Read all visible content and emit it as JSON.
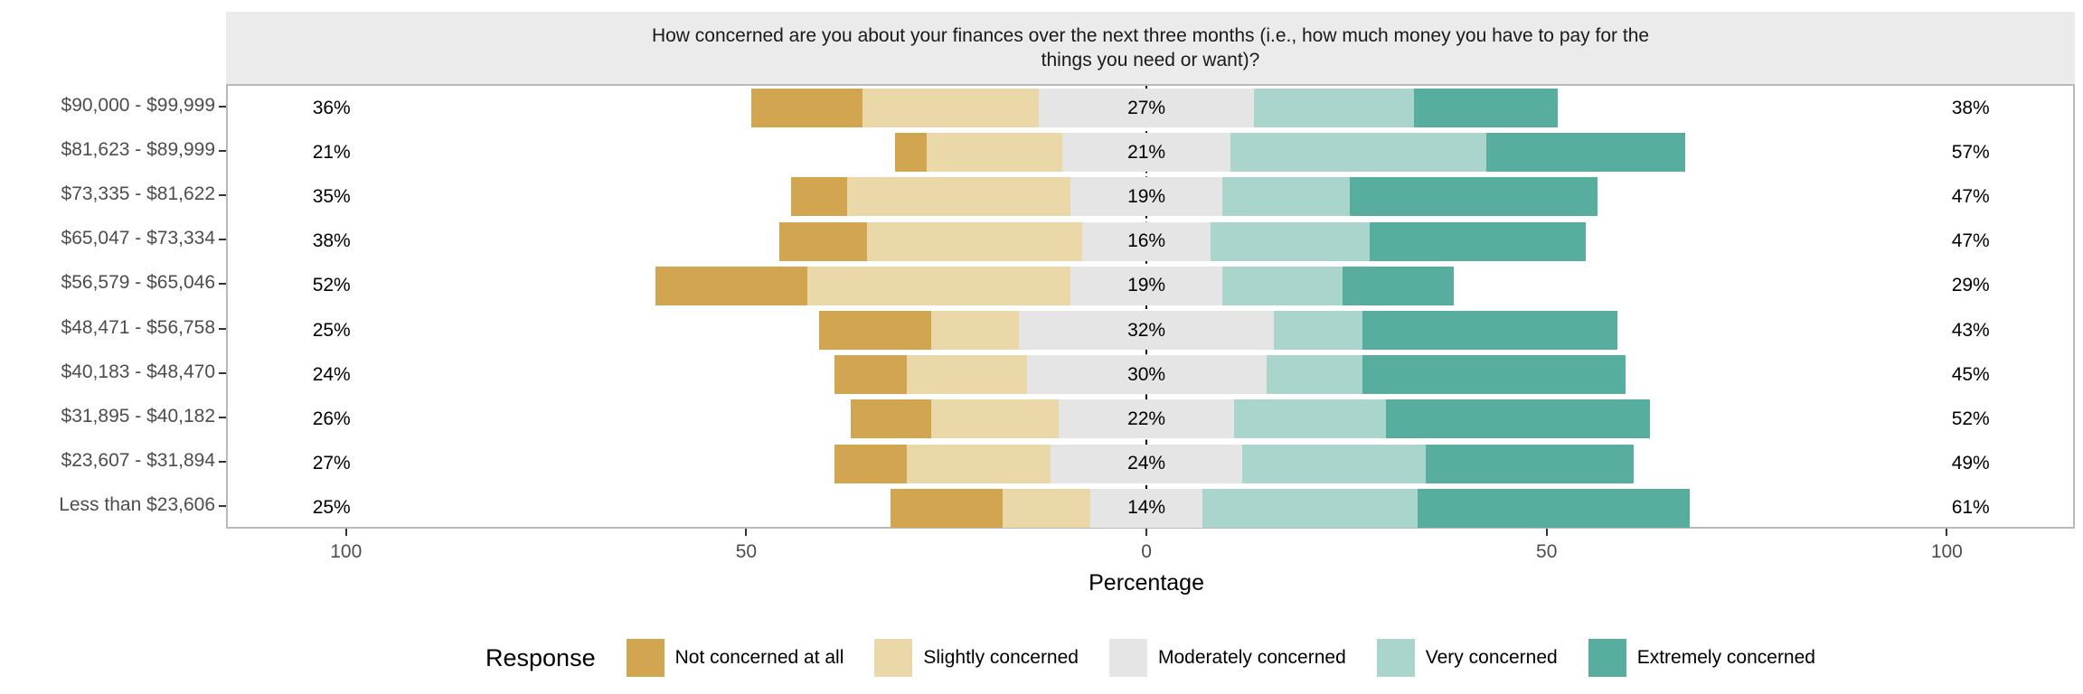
{
  "title": {
    "line1": "How concerned are you about your finances over the next three months (i.e., how much money you have to pay for the",
    "line2": "things you need or want)?"
  },
  "chart_data": {
    "type": "bar",
    "subtype": "diverging_stacked_likert",
    "orientation": "horizontal",
    "xlabel": "Percentage",
    "legend_title": "Response",
    "categories": [
      "$90,000 - $99,999",
      "$81,623 - $89,999",
      "$73,335 - $81,622",
      "$65,047 - $73,334",
      "$56,579 - $65,046",
      "$48,471 - $56,758",
      "$40,183 - $48,470",
      "$31,895 - $40,182",
      "$23,607 - $31,894",
      "Less than $23,606"
    ],
    "series": [
      {
        "name": "Not concerned at all",
        "color": "#d2a551",
        "values": [
          14,
          4,
          7,
          11,
          19,
          14,
          9,
          10,
          9,
          14
        ]
      },
      {
        "name": "Slightly concerned",
        "color": "#ead8a8",
        "values": [
          22,
          17,
          28,
          27,
          33,
          11,
          15,
          16,
          18,
          11
        ]
      },
      {
        "name": "Moderately concerned",
        "color": "#e5e5e5",
        "values": [
          27,
          21,
          19,
          16,
          19,
          32,
          30,
          22,
          24,
          14
        ]
      },
      {
        "name": "Very concerned",
        "color": "#a9d5cc",
        "values": [
          20,
          32,
          16,
          20,
          15,
          11,
          12,
          19,
          23,
          27
        ]
      },
      {
        "name": "Extremely concerned",
        "color": "#57ae9f",
        "values": [
          18,
          25,
          31,
          27,
          14,
          32,
          33,
          33,
          26,
          34
        ]
      }
    ],
    "left_total_labels": [
      "36%",
      "21%",
      "35%",
      "38%",
      "52%",
      "25%",
      "24%",
      "26%",
      "27%",
      "25%"
    ],
    "middle_labels": [
      "27%",
      "21%",
      "19%",
      "16%",
      "19%",
      "32%",
      "30%",
      "22%",
      "24%",
      "14%"
    ],
    "right_total_labels": [
      "38%",
      "57%",
      "47%",
      "47%",
      "29%",
      "43%",
      "45%",
      "52%",
      "49%",
      "61%"
    ],
    "x_ticks": [
      {
        "label": "100",
        "value": -100
      },
      {
        "label": "50",
        "value": -50
      },
      {
        "label": "0",
        "value": 0
      },
      {
        "label": "50",
        "value": 50
      },
      {
        "label": "100",
        "value": 100
      }
    ],
    "xlim": [
      -115,
      116
    ],
    "center_reference_line": {
      "value": 0,
      "style": "dashed",
      "color": "#000000"
    },
    "legend_position": "bottom",
    "grid": "off"
  },
  "colors": {
    "strip_background": "#ebebeb",
    "panel_border": "#b9b9b9",
    "axis_text": "#4d4d4d",
    "tick_mark": "#333333",
    "bar_label_text": "#000000"
  }
}
